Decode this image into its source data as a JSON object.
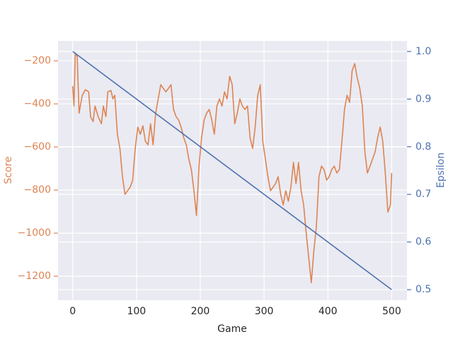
{
  "chart_data": {
    "type": "line",
    "xlabel": "Game",
    "ylabel": "Score",
    "y2label": "Epsilon",
    "xlim": [
      -23,
      524
    ],
    "ylim": [
      -1311,
      -108
    ],
    "y2lim": [
      0.478,
      1.022
    ],
    "xticks": [
      0,
      100,
      200,
      300,
      400,
      500
    ],
    "yticks": [
      {
        "value": -1200,
        "label": "−1200"
      },
      {
        "value": -1000,
        "label": "−1000"
      },
      {
        "value": -800,
        "label": "−800"
      },
      {
        "value": -600,
        "label": "−600"
      },
      {
        "value": -400,
        "label": "−400"
      },
      {
        "value": -200,
        "label": "−200"
      }
    ],
    "y2ticks": [
      0.5,
      0.6,
      0.7,
      0.8,
      0.9,
      {
        "value": 1.0,
        "label": "1.0"
      }
    ],
    "grid": true,
    "series": [
      {
        "name": "Score",
        "color": "#dd8452",
        "x": [
          0,
          2,
          4,
          7,
          10,
          15,
          20,
          25,
          28,
          32,
          35,
          40,
          45,
          48,
          52,
          55,
          60,
          63,
          66,
          70,
          74,
          78,
          82,
          86,
          90,
          94,
          98,
          102,
          106,
          110,
          114,
          118,
          122,
          126,
          130,
          134,
          138,
          142,
          146,
          150,
          154,
          158,
          162,
          166,
          170,
          174,
          178,
          182,
          186,
          190,
          194,
          198,
          202,
          206,
          210,
          214,
          218,
          222,
          226,
          230,
          234,
          238,
          242,
          246,
          250,
          254,
          258,
          262,
          266,
          270,
          274,
          278,
          282,
          286,
          290,
          294,
          298,
          302,
          306,
          310,
          314,
          318,
          322,
          326,
          330,
          334,
          338,
          342,
          346,
          350,
          354,
          358,
          362,
          366,
          370,
          374,
          378,
          382,
          386,
          390,
          394,
          398,
          402,
          406,
          410,
          414,
          418,
          422,
          426,
          430,
          434,
          438,
          442,
          446,
          450,
          454,
          458,
          462,
          466,
          470,
          474,
          478,
          482,
          486,
          490,
          494,
          498,
          500
        ],
        "values": [
          -318,
          -410,
          -164,
          -180,
          -443,
          -360,
          -334,
          -344,
          -460,
          -482,
          -410,
          -460,
          -492,
          -410,
          -459,
          -344,
          -338,
          -377,
          -360,
          -541,
          -607,
          -738,
          -820,
          -803,
          -787,
          -754,
          -607,
          -508,
          -541,
          -502,
          -574,
          -590,
          -492,
          -590,
          -443,
          -377,
          -311,
          -328,
          -344,
          -328,
          -311,
          -426,
          -459,
          -475,
          -508,
          -557,
          -590,
          -656,
          -705,
          -803,
          -918,
          -689,
          -557,
          -475,
          -443,
          -426,
          -475,
          -541,
          -410,
          -377,
          -410,
          -344,
          -377,
          -272,
          -311,
          -492,
          -443,
          -377,
          -410,
          -426,
          -410,
          -557,
          -607,
          -508,
          -360,
          -311,
          -574,
          -656,
          -738,
          -803,
          -787,
          -770,
          -738,
          -820,
          -869,
          -803,
          -852,
          -787,
          -672,
          -770,
          -672,
          -803,
          -869,
          -1000,
          -1115,
          -1230,
          -1082,
          -967,
          -738,
          -689,
          -705,
          -754,
          -738,
          -705,
          -689,
          -721,
          -705,
          -574,
          -426,
          -360,
          -393,
          -246,
          -213,
          -279,
          -328,
          -410,
          -623,
          -721,
          -689,
          -656,
          -623,
          -557,
          -508,
          -574,
          -721,
          -902,
          -869,
          -721
        ]
      },
      {
        "name": "Epsilon",
        "color": "#4c72b0",
        "axis": "y2",
        "x": [
          0,
          500
        ],
        "values": [
          1.0,
          0.5
        ]
      }
    ]
  }
}
